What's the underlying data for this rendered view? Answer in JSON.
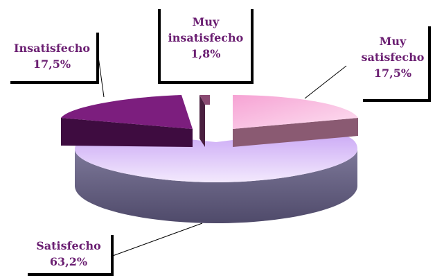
{
  "chart_data": {
    "type": "pie",
    "style": "3d-exploded",
    "unit": "%",
    "slices": [
      {
        "name": "Muy satisfecho",
        "value": 17.5,
        "label_lines": [
          "Muy",
          "satisfecho",
          "17,5%"
        ],
        "color": "#f8b4dc",
        "side_color": "#8a5a72"
      },
      {
        "name": "Satisfecho",
        "value": 63.2,
        "label_lines": [
          "Satisfecho",
          "63,2%"
        ],
        "color": "#e9d4fb",
        "side_color": "#5e5a7a"
      },
      {
        "name": "Insatisfecho",
        "value": 17.5,
        "label_lines": [
          "Insatisfecho",
          "17,5%"
        ],
        "color": "#7c1e7e",
        "side_color": "#3e0c40"
      },
      {
        "name": "Muy insatisfecho",
        "value": 1.8,
        "label_lines": [
          "Muy",
          "insatisfecho",
          "1,8%"
        ],
        "color": "#8a4a72",
        "side_color": "#4a2040"
      }
    ],
    "legend": "none",
    "label_text_color": "#6b1f72"
  }
}
